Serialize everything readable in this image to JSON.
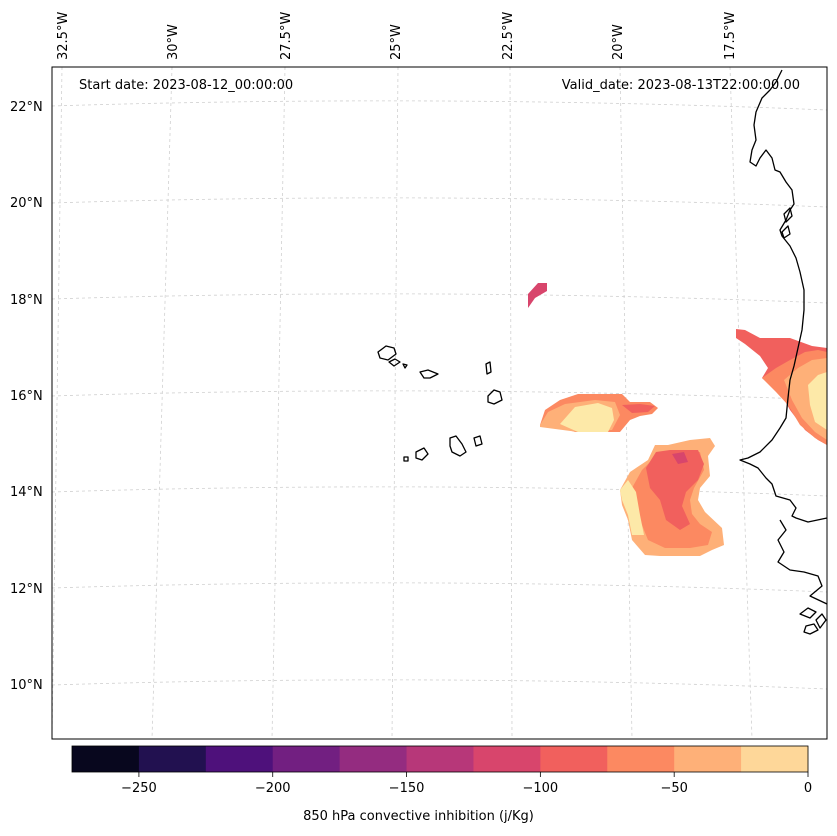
{
  "annotations": {
    "start": "Start date: 2023-08-12_00:00:00",
    "valid": "Valid_date: 2023-08-13T22:00:00.00"
  },
  "lon_labels": [
    "32.5°W",
    "30°W",
    "27.5°W",
    "25°W",
    "22.5°W",
    "20°W",
    "17.5°W"
  ],
  "lat_labels": [
    "22°N",
    "20°N",
    "18°N",
    "16°N",
    "14°N",
    "12°N",
    "10°N"
  ],
  "colorbar": {
    "title": "850 hPa convective inhibition (j/Kg)",
    "ticks": [
      "−250",
      "−200",
      "−150",
      "−100",
      "−50",
      "0"
    ],
    "levels": [
      -275,
      -250,
      -225,
      -200,
      -175,
      -150,
      -125,
      -100,
      -75,
      -50,
      -25,
      0
    ],
    "colors": [
      "#08071e",
      "#221150",
      "#4e117b",
      "#721f81",
      "#942c80",
      "#b73779",
      "#d8456c",
      "#f1605d",
      "#fc8961",
      "#feb078",
      "#fed799",
      "#fde9a8"
    ]
  },
  "map": {
    "extent_lon": [
      -33.5,
      -16.5
    ],
    "extent_lat": [
      8.9,
      22.8
    ],
    "field": "850 hPa convective inhibition",
    "units": "j/Kg",
    "gridlines": true
  }
}
